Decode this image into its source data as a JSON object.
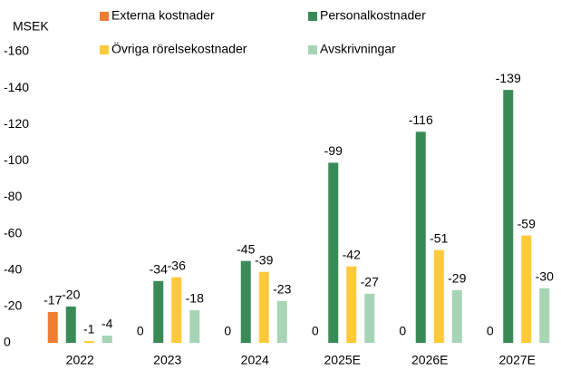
{
  "chart_data": {
    "type": "bar",
    "ylabel": "MSEK",
    "categories": [
      "2022",
      "2023",
      "2024",
      "2025E",
      "2026E",
      "2027E"
    ],
    "series": [
      {
        "name": "Externa kostnader",
        "color": "#ed7d31",
        "values": [
          -17,
          0,
          0,
          0,
          0,
          0
        ]
      },
      {
        "name": "Personalkostnader",
        "color": "#3a8a57",
        "values": [
          -20,
          -34,
          -45,
          -99,
          -116,
          -139
        ]
      },
      {
        "name": "Övriga rörelsekostnader",
        "color": "#ffc93c",
        "values": [
          -1,
          -36,
          -39,
          -42,
          -51,
          -59
        ]
      },
      {
        "name": "Avskrivningar",
        "color": "#a6d4b5",
        "values": [
          -4,
          -18,
          -23,
          -27,
          -29,
          -30
        ]
      }
    ],
    "ylim": [
      0,
      -160
    ],
    "yticks": [
      0,
      -20,
      -40,
      -60,
      -80,
      -100,
      -120,
      -140,
      -160
    ],
    "grid": false
  }
}
